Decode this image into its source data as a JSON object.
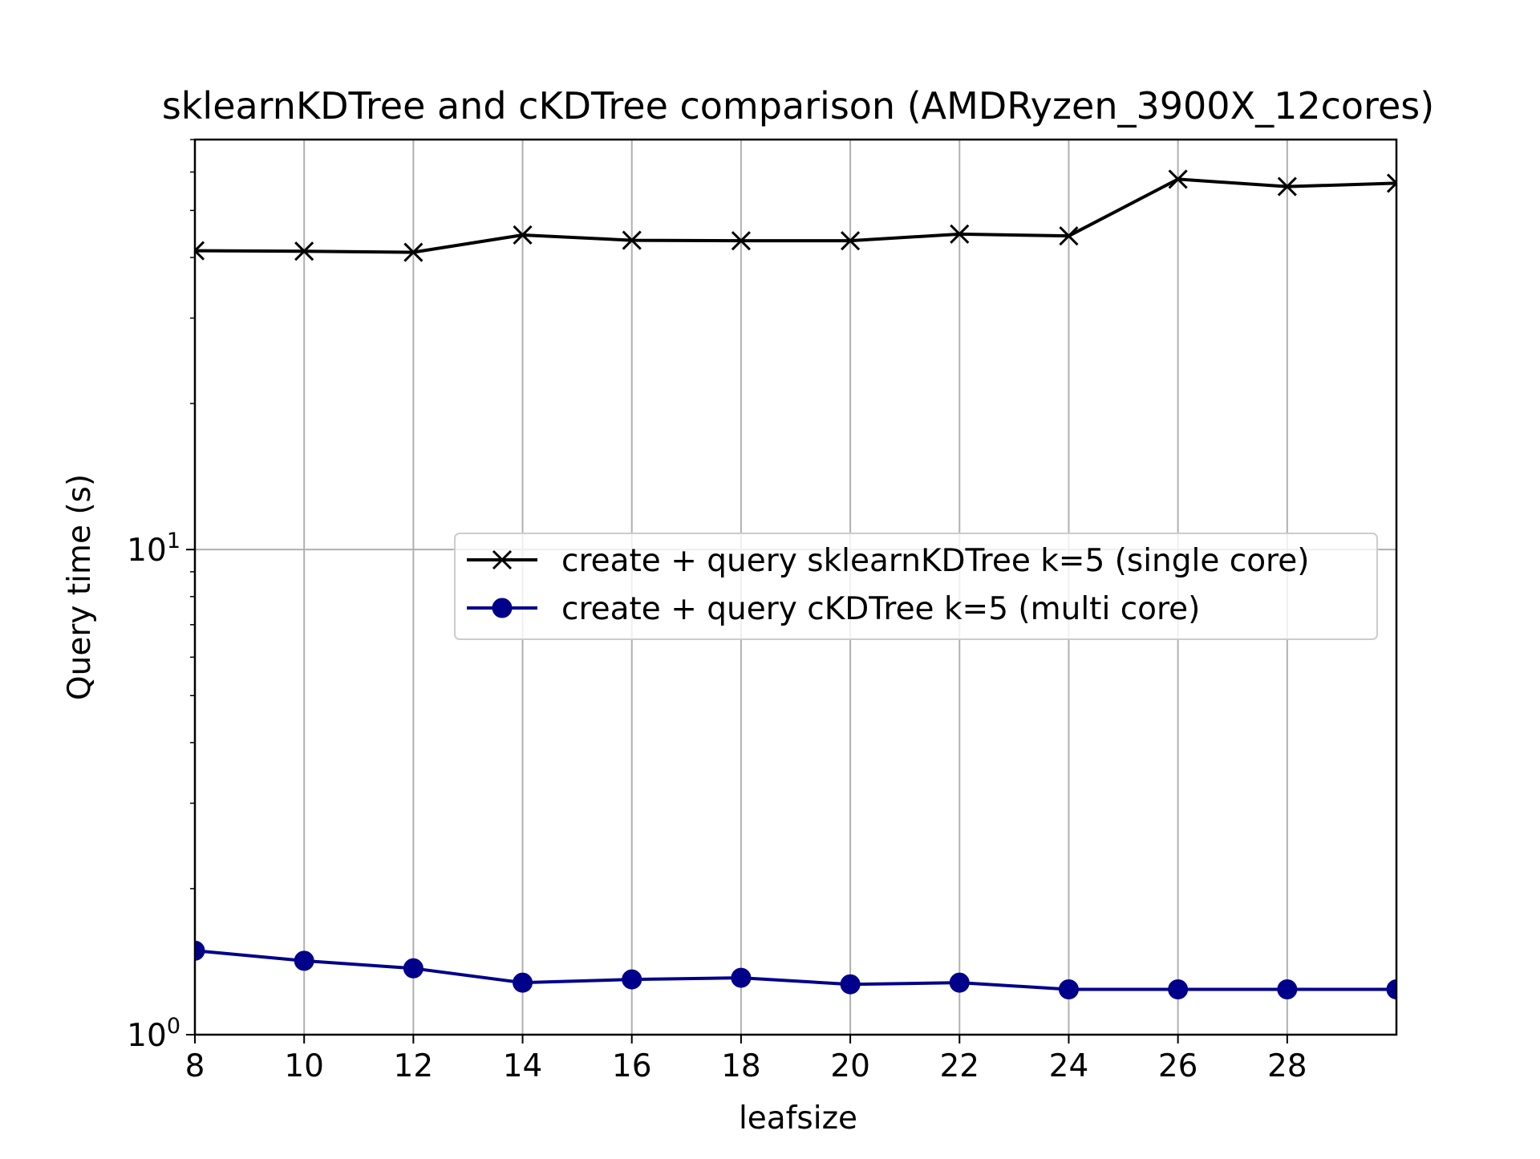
{
  "chart_data": {
    "type": "line",
    "title": "sklearnKDTree and cKDTree comparison (AMDRyzen_3900X_12cores)",
    "xlabel": "leafsize",
    "ylabel": "Query time (s)",
    "yscale": "log",
    "xlim": [
      8,
      30
    ],
    "ylim": [
      1.0,
      70
    ],
    "grid": true,
    "legend_location": "center-right",
    "x_ticks": [
      8,
      10,
      12,
      14,
      16,
      18,
      20,
      22,
      24,
      26,
      28
    ],
    "y_ticks": [
      {
        "value": 1,
        "base": "10",
        "exp": "0"
      },
      {
        "value": 10,
        "base": "10",
        "exp": "1"
      }
    ],
    "x": [
      8,
      10,
      12,
      14,
      16,
      18,
      20,
      22,
      24,
      26,
      28,
      30
    ],
    "series": [
      {
        "name": "create + query sklearnKDTree k=5 (single core)",
        "color": "#000000",
        "marker": "x",
        "values": [
          41.3,
          41.2,
          41.0,
          44.5,
          43.4,
          43.3,
          43.3,
          44.7,
          44.3,
          58.0,
          56.0,
          56.9
        ]
      },
      {
        "name": "create + query cKDTree k=5 (multi core)",
        "color": "#00008b",
        "marker": "o",
        "values": [
          1.49,
          1.42,
          1.37,
          1.28,
          1.3,
          1.31,
          1.27,
          1.28,
          1.24,
          1.24,
          1.24,
          1.24
        ]
      }
    ]
  }
}
